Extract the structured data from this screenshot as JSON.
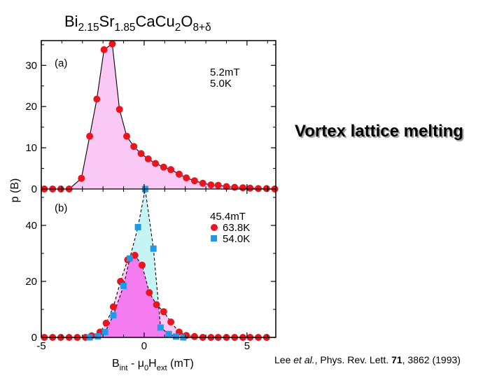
{
  "slide": {
    "title": "Vortex lattice melting",
    "citation": {
      "authors": "Lee",
      "etal": "et al.",
      "journal": ", Phys. Rev. Lett.",
      "volume": "71",
      "pages_year": ", 3862 (1993)"
    }
  },
  "chart_data": {
    "type": "scatter",
    "title": {
      "parts": [
        {
          "t": "Bi",
          "sub": false
        },
        {
          "t": "2.15",
          "sub": true
        },
        {
          "t": "Sr",
          "sub": false
        },
        {
          "t": "1.85",
          "sub": true
        },
        {
          "t": "CaCu",
          "sub": false
        },
        {
          "t": "2",
          "sub": true
        },
        {
          "t": "O",
          "sub": false
        },
        {
          "t": "8+δ",
          "sub": true
        }
      ]
    },
    "xlabel": {
      "parts": [
        {
          "t": "B",
          "sub": false
        },
        {
          "t": "int",
          "sub": true
        },
        {
          "t": " - μ",
          "sub": false
        },
        {
          "t": "0",
          "sub": true
        },
        {
          "t": "H",
          "sub": false
        },
        {
          "t": "ext",
          "sub": true
        },
        {
          "t": " (mT)",
          "sub": false
        }
      ]
    },
    "ylabel": "p (B)",
    "xlim": [
      -5,
      6.4
    ],
    "xticks": [
      -5,
      0,
      5
    ],
    "colors": {
      "red_marker": "#e8141e",
      "blue_marker": "#1e9be6",
      "pink_fill": "#f9c8f4",
      "cyan_fill": "#c6f4f4",
      "magenta_fill": "#f47cf0"
    },
    "panels": [
      {
        "label": "(a)",
        "ylim": [
          0,
          36
        ],
        "yticks": [
          0,
          10,
          20,
          30
        ],
        "annotations": [
          "5.2mT",
          "5.0K"
        ],
        "series": [
          {
            "marker": "circle",
            "color": "#e8141e",
            "fill": "#f9c8f4",
            "x": [
              -4.85,
              -4.45,
              -4.05,
              -3.65,
              -3.05,
              -2.65,
              -2.3,
              -1.95,
              -1.55,
              -1.2,
              -0.85,
              -0.5,
              -0.15,
              0.2,
              0.55,
              0.95,
              1.3,
              1.7,
              2.05,
              2.45,
              2.85,
              3.25,
              3.6,
              4.0,
              4.4,
              4.8,
              5.15,
              5.55,
              5.95,
              6.35
            ],
            "y": [
              0.0,
              0.0,
              0.0,
              0.0,
              2.6,
              12.8,
              21.8,
              33.8,
              35.2,
              19.3,
              12.8,
              10.3,
              8.6,
              7.3,
              6.2,
              5.3,
              4.7,
              3.6,
              2.7,
              2.0,
              1.4,
              1.0,
              0.9,
              0.6,
              0.4,
              0.3,
              0.2,
              0.1,
              0.1,
              0.0
            ]
          }
        ]
      },
      {
        "label": "(b)",
        "ylim": [
          0,
          53
        ],
        "yticks": [
          0,
          20,
          40
        ],
        "annotations": [
          "45.4mT"
        ],
        "legend": [
          "63.8K",
          "54.0K"
        ],
        "series": [
          {
            "name": "63.8K",
            "marker": "circle",
            "color": "#e8141e",
            "fill": "#f9c8f4",
            "x": [
              -4.85,
              -4.45,
              -4.05,
              -3.65,
              -3.25,
              -2.85,
              -2.55,
              -2.15,
              -1.85,
              -1.5,
              -1.15,
              -0.8,
              -0.45,
              -0.1,
              0.25,
              0.6,
              0.95,
              1.3,
              1.7,
              2.05,
              2.45,
              2.85,
              3.25,
              3.6,
              4.0,
              4.4,
              4.8,
              5.15,
              5.55,
              5.95
            ],
            "y": [
              0.0,
              0.0,
              0.0,
              0.0,
              0.0,
              0.0,
              0.6,
              1.9,
              5.1,
              10.9,
              20.0,
              27.7,
              29.3,
              25.8,
              16.0,
              11.7,
              9.2,
              5.5,
              1.9,
              0.7,
              0.3,
              0.0,
              0.0,
              0.0,
              0.0,
              0.0,
              0.0,
              0.0,
              0.0,
              0.0
            ]
          },
          {
            "name": "54.0K",
            "marker": "square",
            "color": "#1e9be6",
            "fill": "#c6f4f4",
            "x": [
              -2.65,
              -2.25,
              -1.9,
              -1.5,
              -1.0,
              -0.7,
              -0.3,
              0.05,
              0.45,
              0.8,
              1.2,
              1.55,
              1.9
            ],
            "y": [
              0.0,
              0.4,
              1.9,
              7.9,
              18.4,
              28.2,
              39.4,
              53.0,
              31.7,
              3.5,
              1.2,
              0.3,
              0.0
            ]
          }
        ]
      }
    ]
  }
}
